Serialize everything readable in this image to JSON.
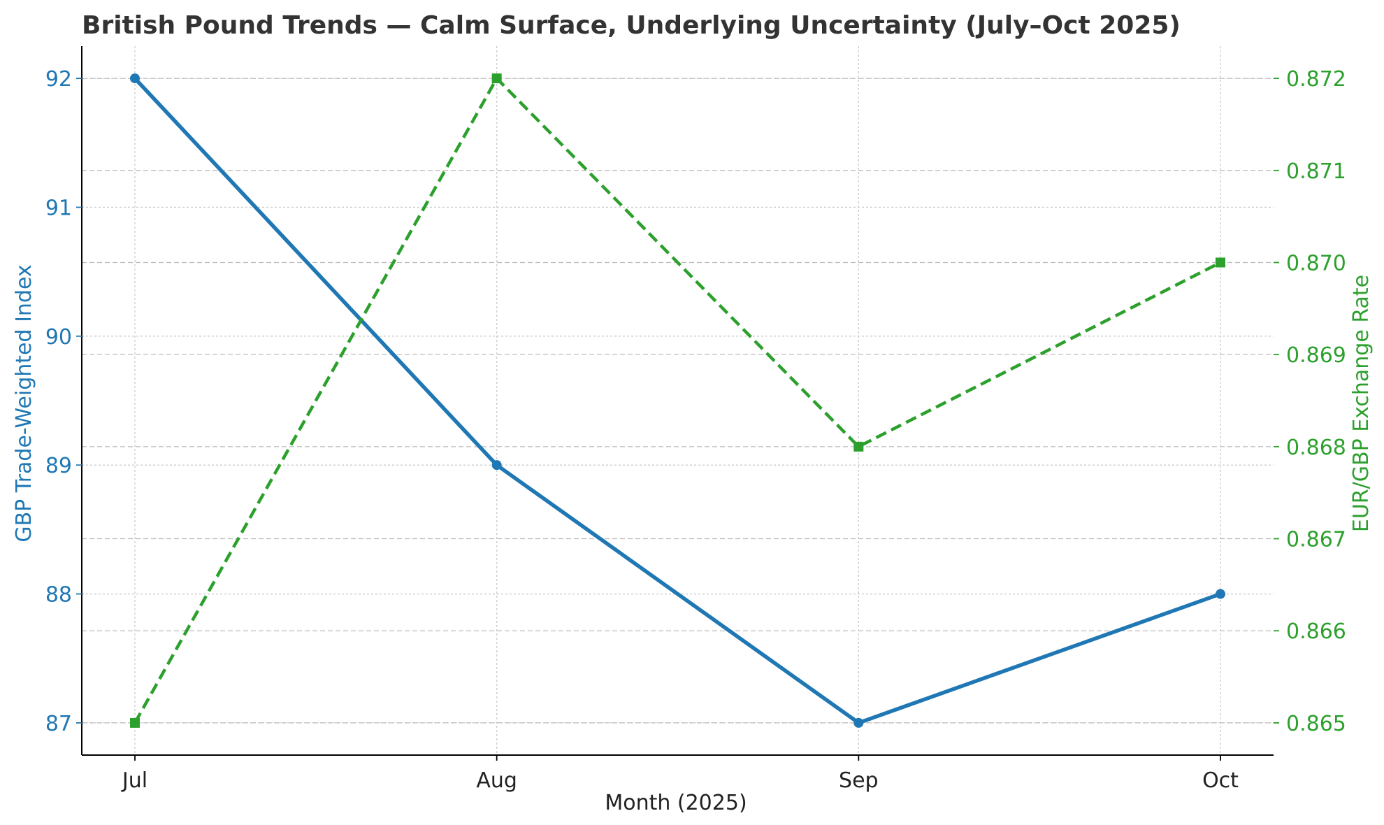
{
  "chart_data": {
    "type": "line",
    "title": "British Pound Trends — Calm Surface, Underlying Uncertainty (July–Oct 2025)",
    "xlabel": "Month (2025)",
    "categories": [
      "Jul",
      "Aug",
      "Sep",
      "Oct"
    ],
    "grid": true,
    "left_axis": {
      "label": "GBP Trade-Weighted Index",
      "ylim": [
        86.75,
        92.25
      ],
      "ticks": [
        "87",
        "88",
        "89",
        "90",
        "91",
        "92"
      ],
      "tick_values": [
        87,
        88,
        89,
        90,
        91,
        92
      ],
      "color": "#1f77b4"
    },
    "right_axis": {
      "label": "EUR/GBP Exchange Rate",
      "ylim": [
        0.86465,
        0.87235
      ],
      "ticks": [
        "0.865",
        "0.866",
        "0.867",
        "0.868",
        "0.869",
        "0.870",
        "0.871",
        "0.872"
      ],
      "tick_values": [
        0.865,
        0.866,
        0.867,
        0.868,
        0.869,
        0.87,
        0.871,
        0.872
      ],
      "color": "#2ca02c"
    },
    "series": [
      {
        "axis": "left",
        "values": [
          92,
          89,
          87,
          88
        ],
        "color": "#1f77b4",
        "line_style": "solid",
        "marker": "circle"
      },
      {
        "axis": "right",
        "values": [
          0.865,
          0.872,
          0.868,
          0.87
        ],
        "color": "#2ca02c",
        "line_style": "dashed",
        "marker": "square"
      }
    ]
  }
}
